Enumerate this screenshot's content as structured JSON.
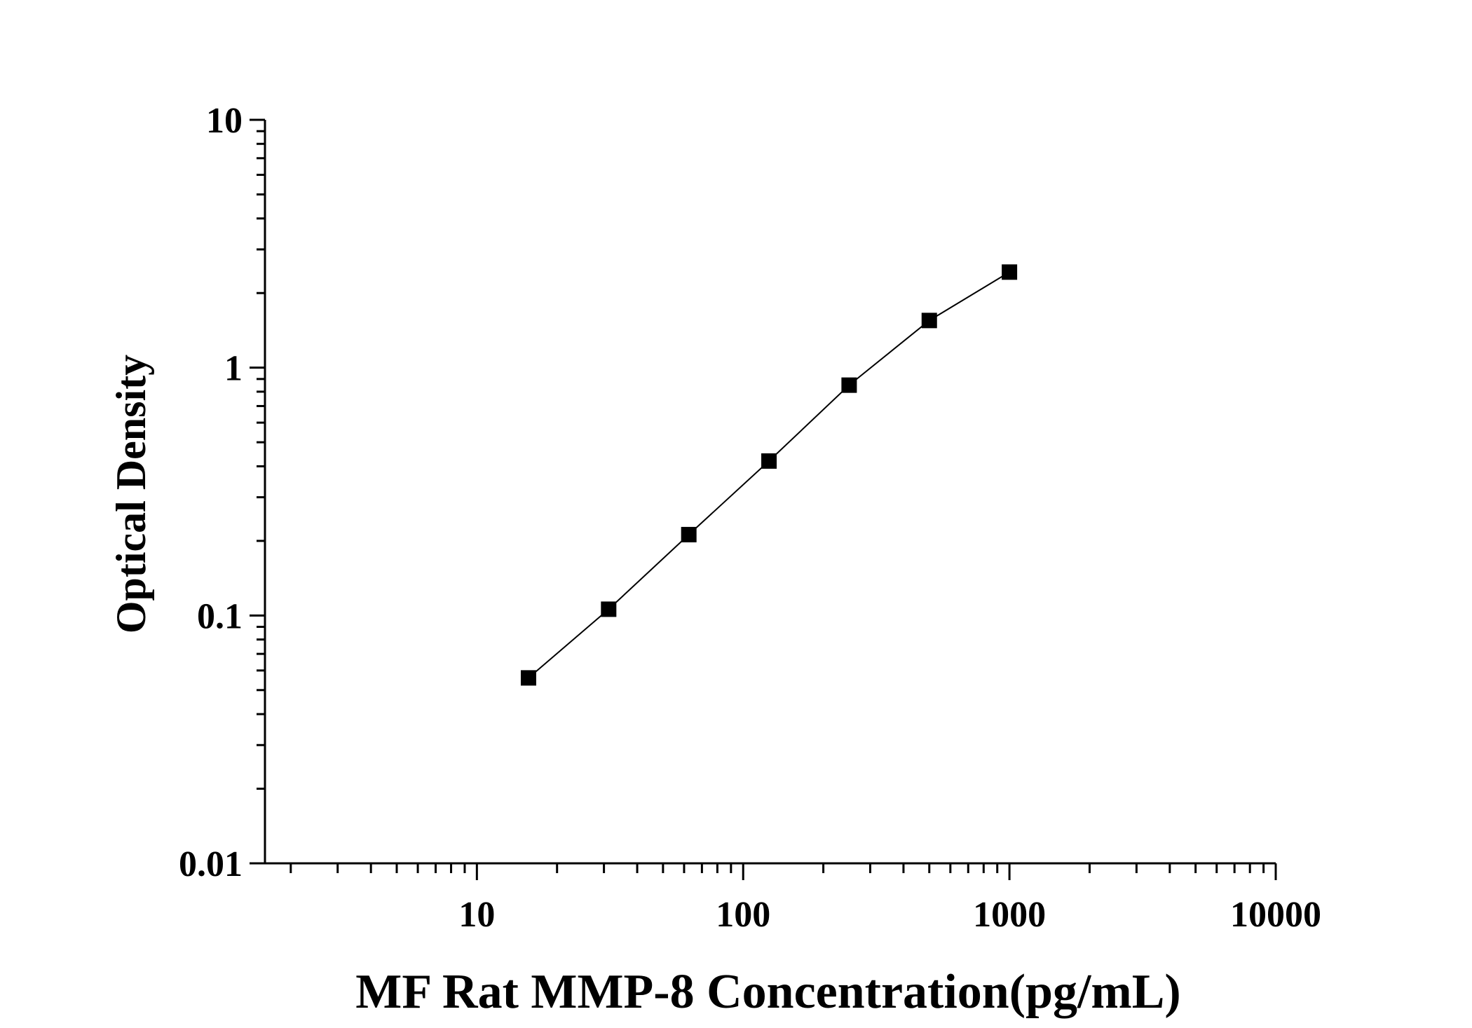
{
  "chart_data": {
    "type": "scatter",
    "title": "",
    "xlabel": "MF Rat MMP-8 Concentration(pg/mL)",
    "ylabel": "Optical Density",
    "x_scale": "log",
    "y_scale": "log",
    "xlim": [
      1.6,
      10000
    ],
    "ylim": [
      0.01,
      10
    ],
    "x_ticks": [
      10,
      100,
      1000,
      10000
    ],
    "x_tick_labels": [
      "10",
      "100",
      "1000",
      "10000"
    ],
    "y_ticks": [
      0.01,
      0.1,
      1,
      10
    ],
    "y_tick_labels": [
      "0.01",
      "0.1",
      "1",
      "10"
    ],
    "grid": false,
    "legend": "none",
    "series": [
      {
        "x": [
          15.625,
          31.25,
          62.5,
          125,
          250,
          500,
          1000
        ],
        "y": [
          0.056,
          0.106,
          0.212,
          0.42,
          0.85,
          1.55,
          2.43
        ],
        "marker": "square",
        "line": true,
        "color": "#000000"
      }
    ]
  }
}
